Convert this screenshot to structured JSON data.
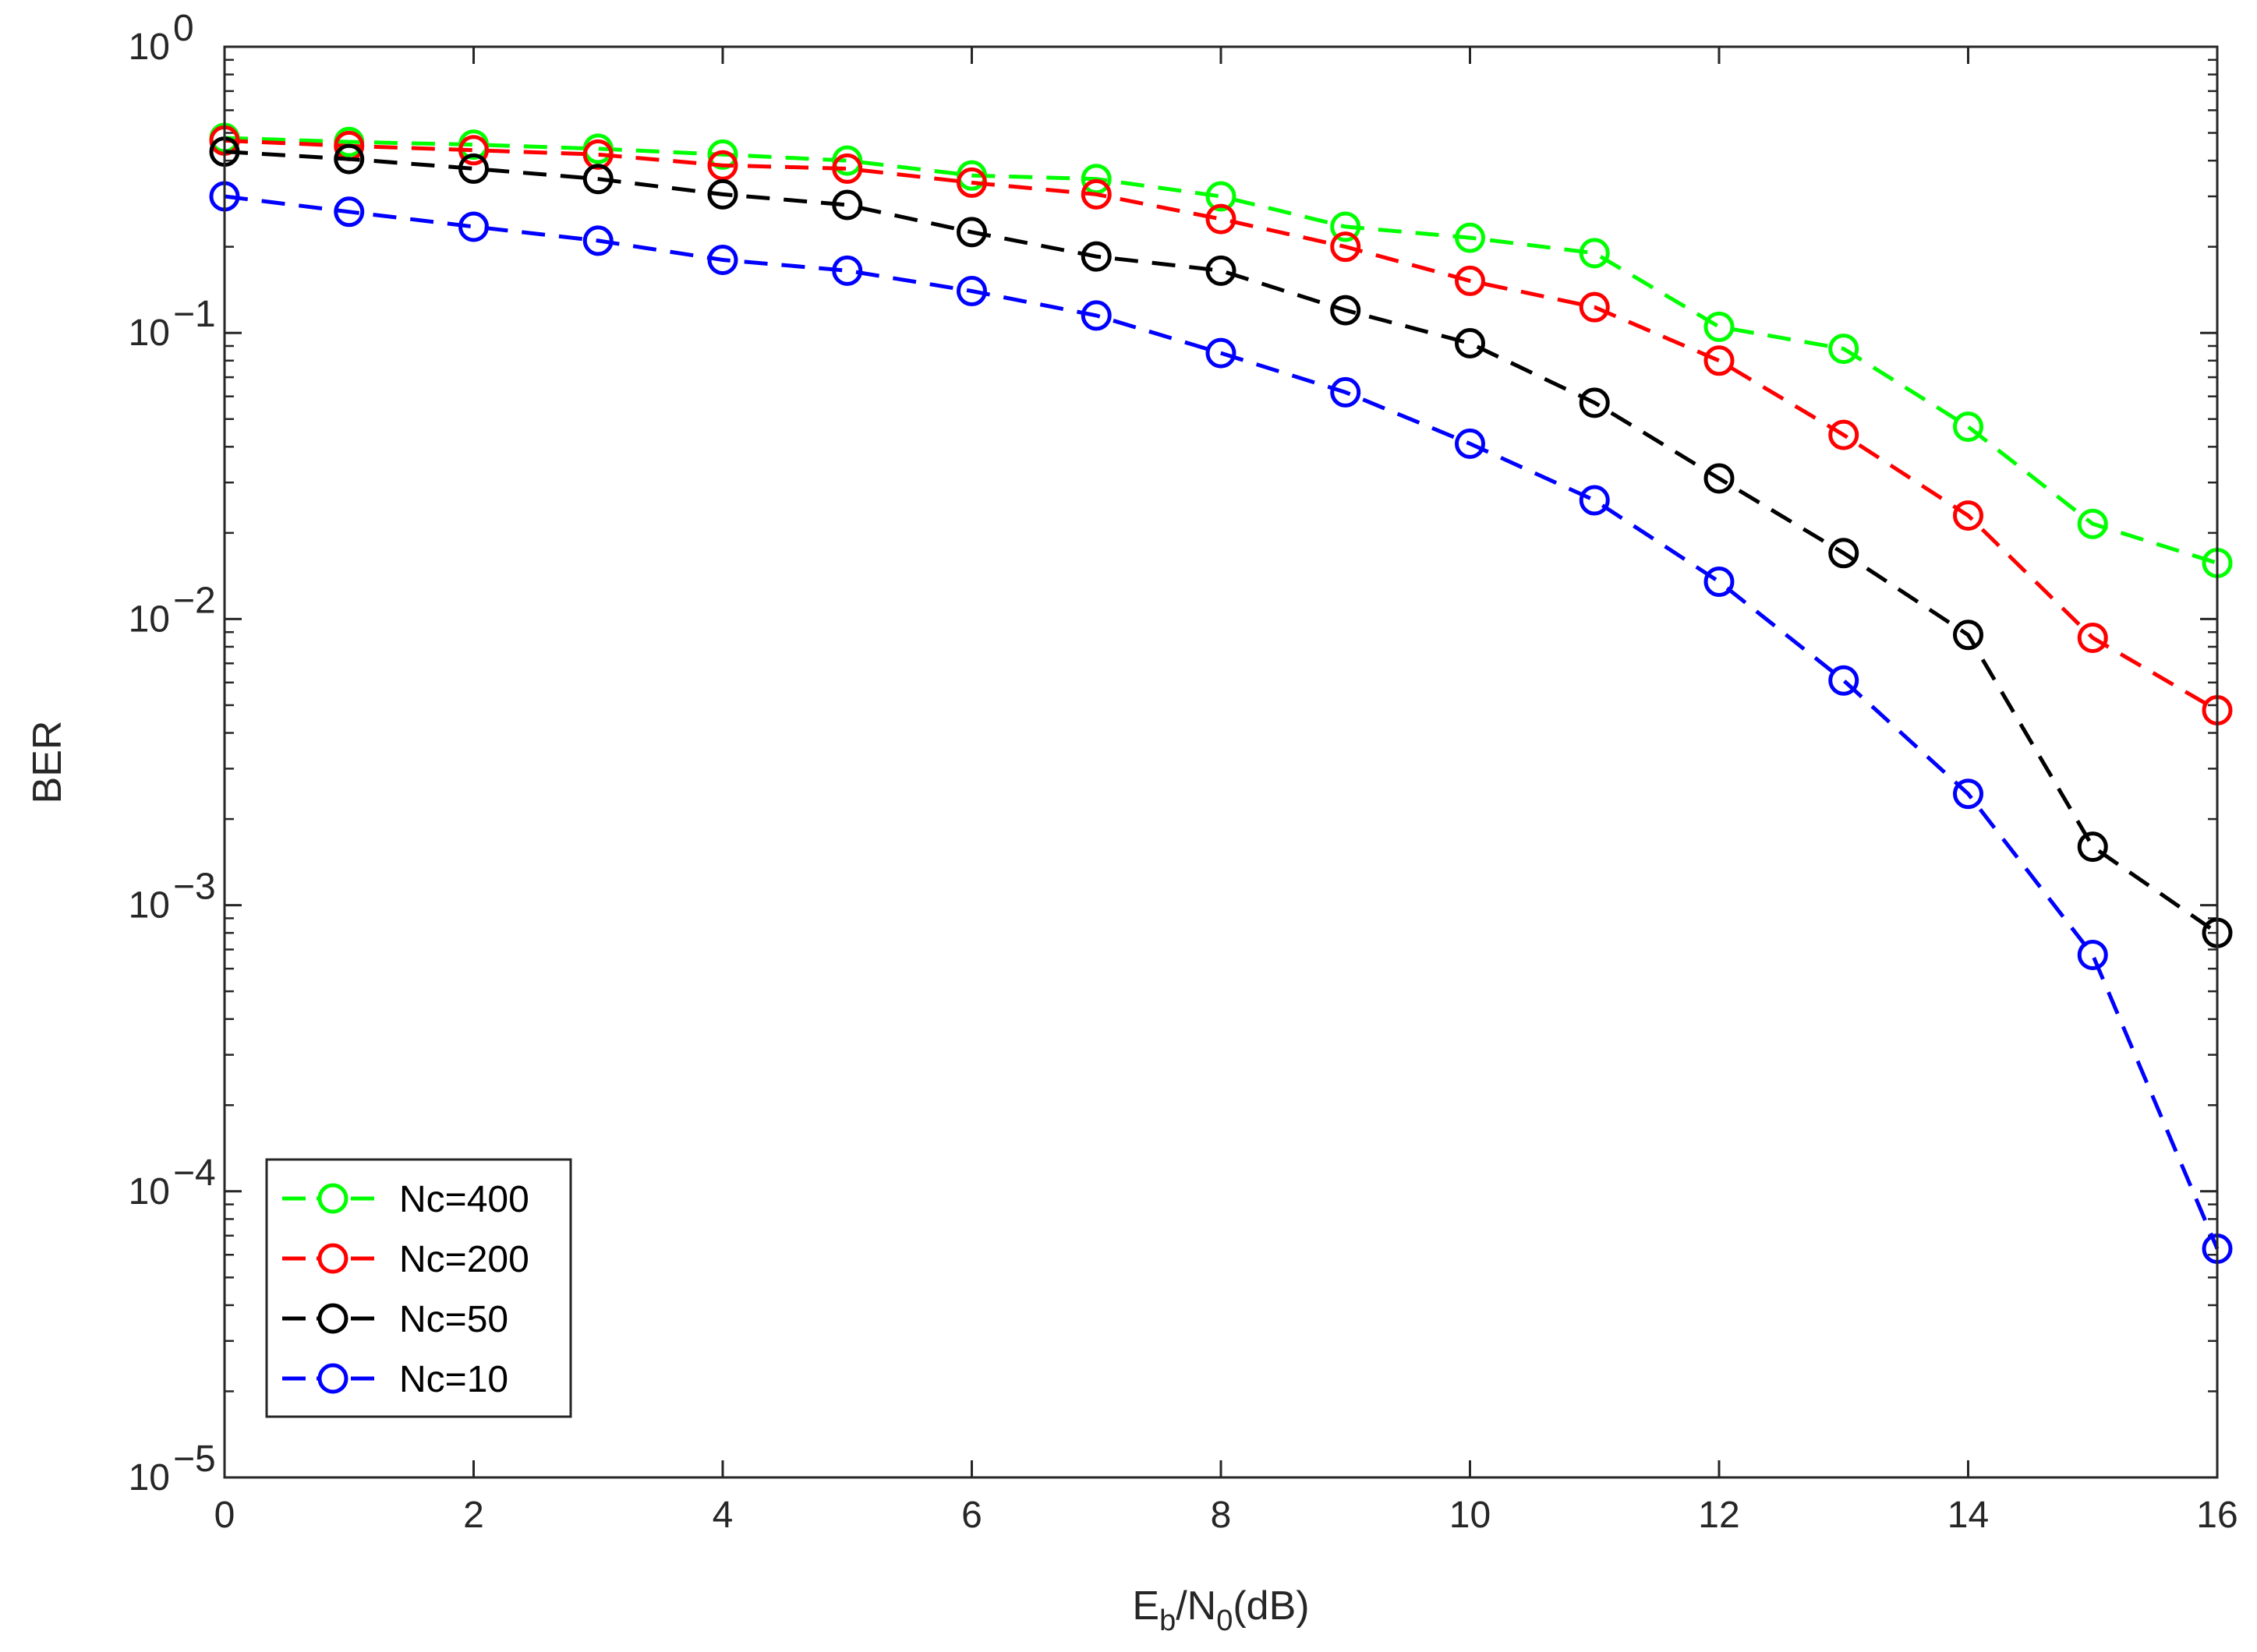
{
  "chart_data": {
    "type": "line",
    "title": "",
    "xlabel": {
      "main": "E",
      "sub1": "b",
      "mid": "/N",
      "sub2": "0",
      "tail": "(dB)"
    },
    "ylabel": "BER",
    "xlim": [
      0,
      16
    ],
    "ylim": [
      1e-05,
      1
    ],
    "yscale": "log",
    "grid": false,
    "legend_position": "bottom-left",
    "x_ticks": [
      "0",
      "2",
      "4",
      "6",
      "8",
      "10",
      "12",
      "14",
      "16"
    ],
    "y_ticks": [
      {
        "base": "10",
        "exp": "0"
      },
      {
        "base": "10",
        "exp": "−1"
      },
      {
        "base": "10",
        "exp": "−2"
      },
      {
        "base": "10",
        "exp": "−3"
      },
      {
        "base": "10",
        "exp": "−4"
      },
      {
        "base": "10",
        "exp": "−5"
      }
    ],
    "x": [
      0,
      1,
      2,
      3,
      4,
      5,
      6,
      7,
      8,
      9,
      10,
      11,
      12,
      13,
      14,
      15,
      16
    ],
    "series": [
      {
        "name": "Nc=400",
        "color": "#00ff00",
        "marker": "circle",
        "line": "dashed",
        "values": [
          0.48,
          0.465,
          0.455,
          0.44,
          0.42,
          0.4,
          0.355,
          0.345,
          0.3,
          0.235,
          0.215,
          0.19,
          0.105,
          0.088,
          0.047,
          0.0215,
          0.0157
        ]
      },
      {
        "name": "Nc=200",
        "color": "#ff0000",
        "marker": "circle",
        "line": "dashed",
        "values": [
          0.47,
          0.45,
          0.435,
          0.42,
          0.385,
          0.375,
          0.335,
          0.305,
          0.25,
          0.2,
          0.152,
          0.123,
          0.08,
          0.044,
          0.023,
          0.0086,
          0.0048
        ]
      },
      {
        "name": "Nc=50",
        "color": "#000000",
        "marker": "circle",
        "line": "dashed",
        "values": [
          0.43,
          0.405,
          0.375,
          0.345,
          0.305,
          0.28,
          0.225,
          0.185,
          0.165,
          0.12,
          0.092,
          0.057,
          0.031,
          0.017,
          0.0088,
          0.0016,
          0.0008
        ]
      },
      {
        "name": "Nc=10",
        "color": "#0000ff",
        "marker": "circle",
        "line": "dashed",
        "values": [
          0.3,
          0.265,
          0.235,
          0.21,
          0.18,
          0.165,
          0.14,
          0.115,
          0.085,
          0.062,
          0.041,
          0.026,
          0.0135,
          0.0061,
          0.00245,
          0.00067,
          6.3e-05
        ]
      }
    ]
  }
}
